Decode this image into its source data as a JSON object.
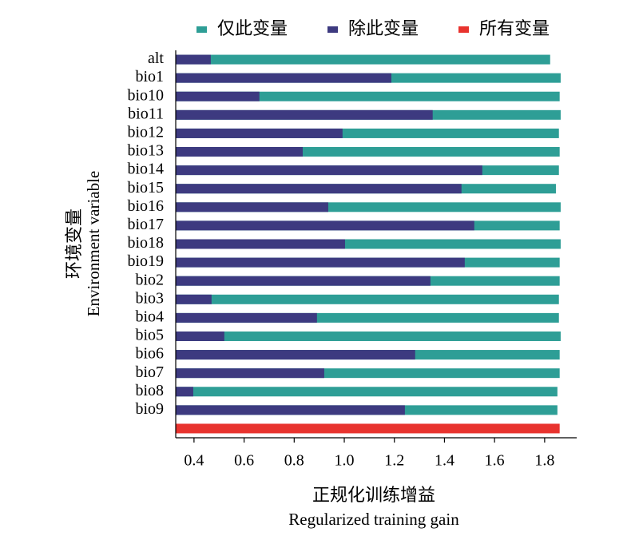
{
  "chart_data": {
    "type": "bar",
    "orientation": "horizontal",
    "xlabel": "正规化训练增益",
    "xlabel_en": "Regularized training gain",
    "ylabel": "环境变量",
    "ylabel_en": "Environment variable",
    "categories": [
      "alt",
      "bio1",
      "bio10",
      "bio11",
      "bio12",
      "bio13",
      "bio14",
      "bio15",
      "bio16",
      "bio17",
      "bio18",
      "bio19",
      "bio2",
      "bio3",
      "bio4",
      "bio5",
      "bio6",
      "bio7",
      "bio8",
      "bio9",
      null
    ],
    "series": [
      {
        "name": "仅此变量",
        "color": "#2e9e96",
        "values": [
          1.822,
          1.864,
          1.86,
          1.864,
          1.857,
          1.86,
          1.857,
          1.845,
          1.864,
          1.86,
          1.864,
          1.86,
          1.86,
          1.857,
          1.857,
          1.864,
          1.86,
          1.86,
          1.851,
          1.851,
          null
        ]
      },
      {
        "name": "除此变量",
        "color": "#3d3a80",
        "values": [
          0.467,
          1.188,
          0.661,
          1.353,
          0.993,
          0.834,
          1.551,
          1.468,
          0.936,
          1.519,
          1.003,
          1.481,
          1.344,
          0.47,
          0.891,
          0.521,
          1.283,
          0.92,
          0.397,
          1.242,
          null
        ]
      },
      {
        "name": "所有变量",
        "color": "#e8332e",
        "values": [
          null,
          null,
          null,
          null,
          null,
          null,
          null,
          null,
          null,
          null,
          null,
          null,
          null,
          null,
          null,
          null,
          null,
          null,
          null,
          null,
          1.86
        ]
      }
    ],
    "xlim": [
      0.327,
      1.928
    ],
    "xticks": [
      0.4,
      0.6,
      0.8,
      {
        "value": 1.0,
        "label": "1.0"
      },
      1.2,
      1.4,
      1.6,
      1.8
    ],
    "legend": "top"
  }
}
